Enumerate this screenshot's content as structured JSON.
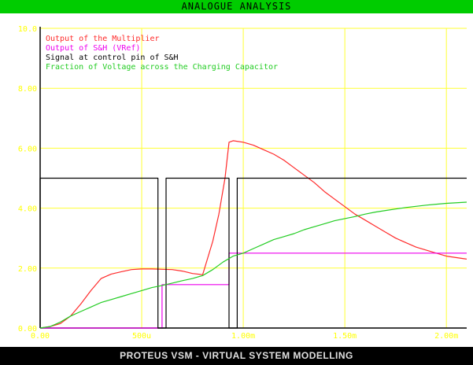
{
  "window": {
    "title": "ANALOGUE ANALYSIS",
    "footer": "PROTEUS VSM - VIRTUAL SYSTEM MODELLING"
  },
  "colors": {
    "title_bar": "#00cc00",
    "plot_bg": "#ffffff",
    "axis": "#000000",
    "grid": "#ffff33",
    "tick_text": "#ffff00",
    "footer_bg": "#000000"
  },
  "chart_data": {
    "type": "line",
    "title": "ANALOGUE ANALYSIS",
    "xlim": [
      0,
      0.0021
    ],
    "ylim": [
      0,
      10
    ],
    "x_ticks": [
      {
        "value": 0,
        "label": "0.00"
      },
      {
        "value": 0.0005,
        "label": "500u"
      },
      {
        "value": 0.001,
        "label": "1.00m"
      },
      {
        "value": 0.0015,
        "label": "1.50m"
      },
      {
        "value": 0.002,
        "label": "2.00m"
      }
    ],
    "y_ticks": [
      {
        "value": 0,
        "label": "0.00"
      },
      {
        "value": 2,
        "label": "2.00"
      },
      {
        "value": 4,
        "label": "4.00"
      },
      {
        "value": 6,
        "label": "6.00"
      },
      {
        "value": 8,
        "label": "8.00"
      },
      {
        "value": 10,
        "label": "10.0"
      }
    ],
    "grid": true,
    "legend_position": "top-left",
    "series": [
      {
        "name": "Output of the Multiplier",
        "color": "#ff2a2a",
        "points": [
          [
            0,
            0
          ],
          [
            5e-05,
            0.05
          ],
          [
            0.0001,
            0.15
          ],
          [
            0.00015,
            0.4
          ],
          [
            0.0002,
            0.8
          ],
          [
            0.00025,
            1.25
          ],
          [
            0.0003,
            1.65
          ],
          [
            0.00035,
            1.8
          ],
          [
            0.0004,
            1.88
          ],
          [
            0.00045,
            1.95
          ],
          [
            0.0005,
            1.97
          ],
          [
            0.00055,
            1.97
          ],
          [
            0.0006,
            1.96
          ],
          [
            0.00065,
            1.95
          ],
          [
            0.0007,
            1.9
          ],
          [
            0.00075,
            1.82
          ],
          [
            0.0008,
            1.78
          ],
          [
            0.00085,
            2.9
          ],
          [
            0.00088,
            3.8
          ],
          [
            0.00091,
            5.0
          ],
          [
            0.00093,
            6.2
          ],
          [
            0.00095,
            6.25
          ],
          [
            0.001,
            6.2
          ],
          [
            0.00105,
            6.1
          ],
          [
            0.0011,
            5.95
          ],
          [
            0.00115,
            5.8
          ],
          [
            0.0012,
            5.6
          ],
          [
            0.00125,
            5.35
          ],
          [
            0.0013,
            5.1
          ],
          [
            0.00135,
            4.85
          ],
          [
            0.0014,
            4.55
          ],
          [
            0.00145,
            4.3
          ],
          [
            0.0015,
            4.05
          ],
          [
            0.00155,
            3.8
          ],
          [
            0.0016,
            3.6
          ],
          [
            0.00165,
            3.4
          ],
          [
            0.0017,
            3.2
          ],
          [
            0.00175,
            3.0
          ],
          [
            0.0018,
            2.85
          ],
          [
            0.00185,
            2.7
          ],
          [
            0.0019,
            2.6
          ],
          [
            0.00195,
            2.5
          ],
          [
            0.002,
            2.4
          ],
          [
            0.0021,
            2.3
          ]
        ]
      },
      {
        "name": "Output of S&H (VRef)",
        "color": "#ee00ee",
        "points": [
          [
            0,
            0
          ],
          [
            0.0006,
            0
          ],
          [
            0.0006,
            1.45
          ],
          [
            0.00093,
            1.45
          ],
          [
            0.00093,
            2.5
          ],
          [
            0.0021,
            2.5
          ]
        ]
      },
      {
        "name": "Signal at control pin of S&H",
        "color": "#000000",
        "points": [
          [
            0,
            0
          ],
          [
            0,
            5
          ],
          [
            0.00058,
            5
          ],
          [
            0.00058,
            0
          ],
          [
            0.00062,
            0
          ],
          [
            0.00062,
            5
          ],
          [
            0.00093,
            5
          ],
          [
            0.00093,
            0
          ],
          [
            0.00097,
            0
          ],
          [
            0.00097,
            5
          ],
          [
            0.0021,
            5
          ]
        ]
      },
      {
        "name": "Fraction of Voltage across the Charging Capacitor",
        "color": "#22cc22",
        "points": [
          [
            0,
            0
          ],
          [
            5e-05,
            0.05
          ],
          [
            0.0001,
            0.2
          ],
          [
            0.00015,
            0.4
          ],
          [
            0.0002,
            0.55
          ],
          [
            0.00025,
            0.7
          ],
          [
            0.0003,
            0.85
          ],
          [
            0.00035,
            0.95
          ],
          [
            0.0004,
            1.05
          ],
          [
            0.00045,
            1.15
          ],
          [
            0.0005,
            1.25
          ],
          [
            0.00055,
            1.35
          ],
          [
            0.0006,
            1.42
          ],
          [
            0.00065,
            1.5
          ],
          [
            0.0007,
            1.58
          ],
          [
            0.00075,
            1.65
          ],
          [
            0.0008,
            1.75
          ],
          [
            0.00085,
            1.95
          ],
          [
            0.0009,
            2.2
          ],
          [
            0.00095,
            2.4
          ],
          [
            0.001,
            2.5
          ],
          [
            0.00105,
            2.65
          ],
          [
            0.0011,
            2.8
          ],
          [
            0.00115,
            2.95
          ],
          [
            0.0012,
            3.05
          ],
          [
            0.00125,
            3.15
          ],
          [
            0.0013,
            3.28
          ],
          [
            0.00135,
            3.38
          ],
          [
            0.0014,
            3.48
          ],
          [
            0.00145,
            3.58
          ],
          [
            0.0015,
            3.65
          ],
          [
            0.00155,
            3.72
          ],
          [
            0.0016,
            3.8
          ],
          [
            0.00165,
            3.87
          ],
          [
            0.0017,
            3.92
          ],
          [
            0.00175,
            3.97
          ],
          [
            0.0018,
            4.02
          ],
          [
            0.00185,
            4.06
          ],
          [
            0.0019,
            4.1
          ],
          [
            0.00195,
            4.13
          ],
          [
            0.002,
            4.16
          ],
          [
            0.0021,
            4.2
          ]
        ]
      }
    ]
  }
}
